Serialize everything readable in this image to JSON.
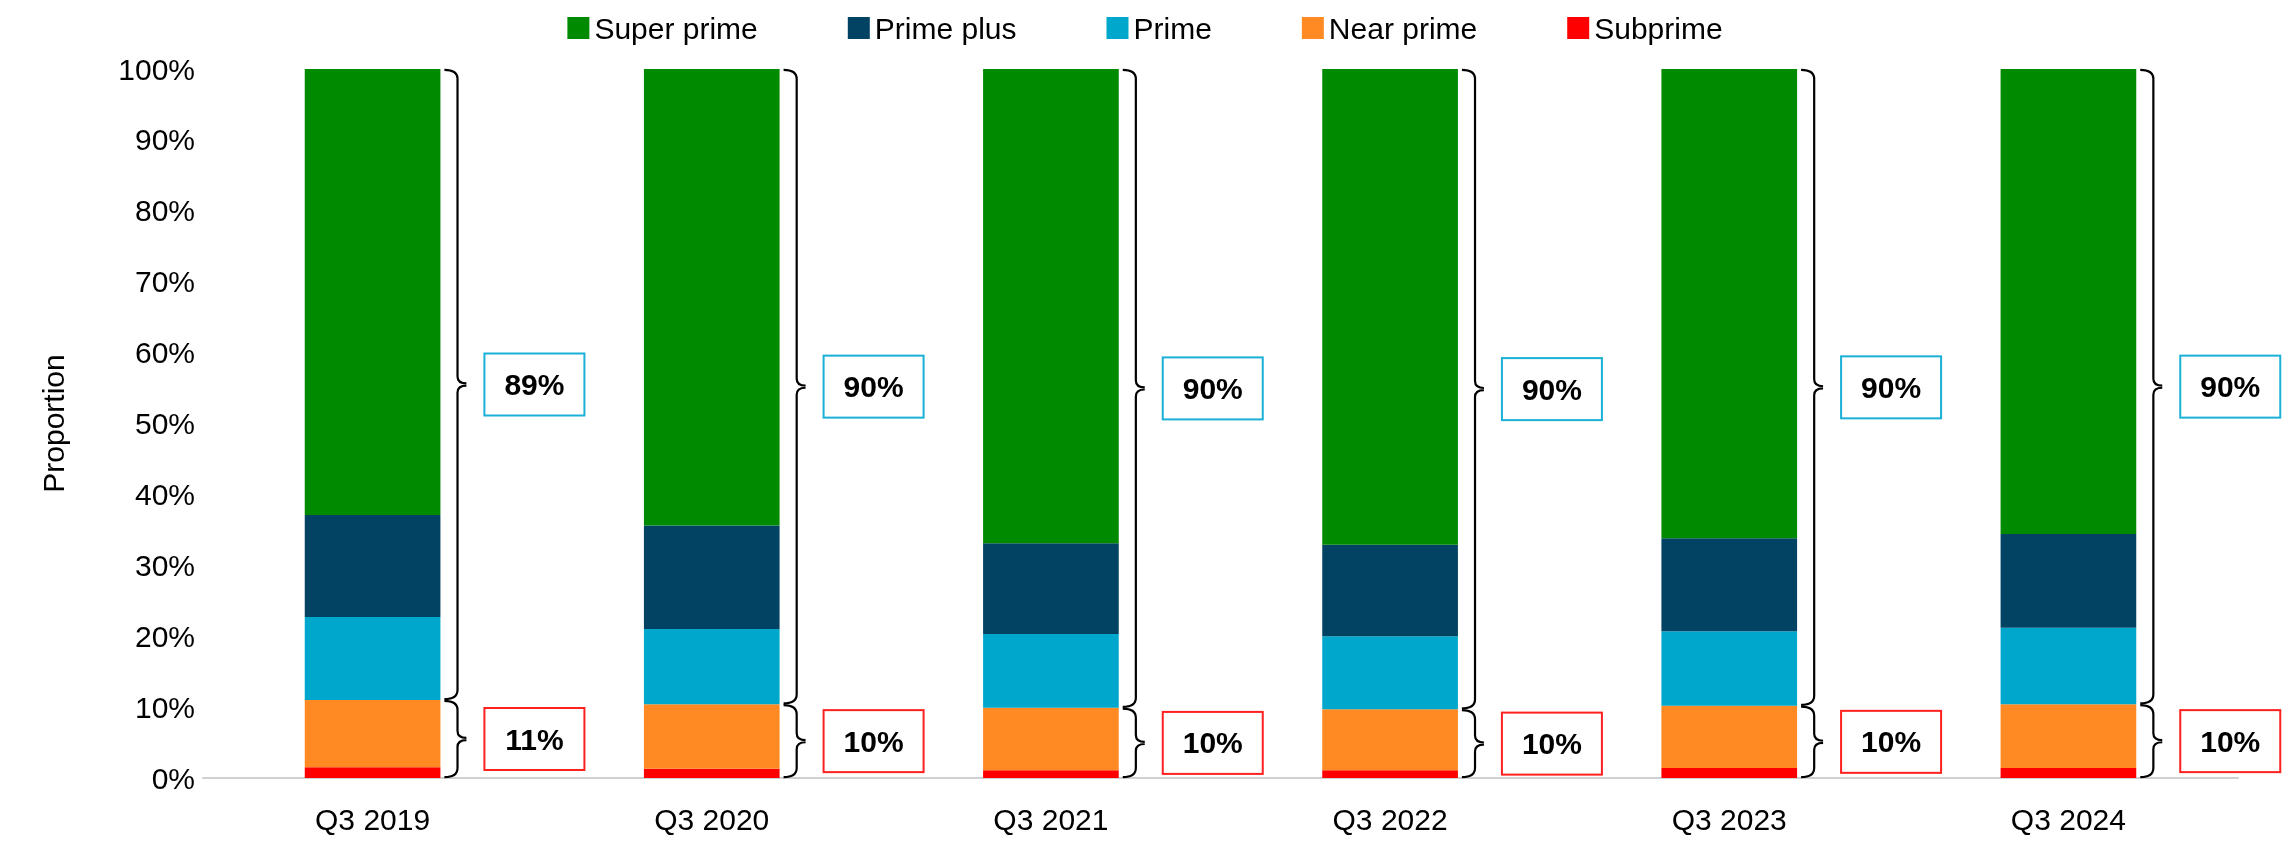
{
  "chart_data": {
    "type": "bar",
    "stacked": true,
    "ylabel": "Proportion",
    "categories": [
      "Q3 2019",
      "Q3 2020",
      "Q3 2021",
      "Q3 2022",
      "Q3 2023",
      "Q3 2024"
    ],
    "series": [
      {
        "name": "Subprime",
        "color": "#ff0000",
        "values": [
          1.5,
          1.3,
          1.1,
          1.1,
          1.4,
          1.4
        ]
      },
      {
        "name": "Near prime",
        "color": "#ff8a23",
        "values": [
          9.5,
          9.1,
          8.8,
          8.6,
          8.8,
          9.0
        ]
      },
      {
        "name": "Prime",
        "color": "#00a7cc",
        "values": [
          11.7,
          10.6,
          10.4,
          10.3,
          10.5,
          10.8
        ]
      },
      {
        "name": "Prime plus",
        "color": "#024363",
        "values": [
          14.4,
          14.6,
          12.8,
          12.9,
          13.1,
          13.2
        ]
      },
      {
        "name": "Super prime",
        "color": "#008a00",
        "values": [
          62.9,
          64.4,
          66.9,
          67.1,
          66.2,
          65.6
        ]
      }
    ],
    "ylim": [
      0,
      100
    ],
    "yticks": [
      {
        "value": 0,
        "label": "0%"
      },
      {
        "value": 10,
        "label": "10%"
      },
      {
        "value": 20,
        "label": "20%"
      },
      {
        "value": 30,
        "label": "30%"
      },
      {
        "value": 40,
        "label": "40%"
      },
      {
        "value": 50,
        "label": "50%"
      },
      {
        "value": 60,
        "label": "60%"
      },
      {
        "value": 70,
        "label": "70%"
      },
      {
        "value": 80,
        "label": "80%"
      },
      {
        "value": 90,
        "label": "90%"
      },
      {
        "value": 100,
        "label": "100%"
      }
    ],
    "grid": false,
    "legend": "top",
    "annotations": [
      "89%",
      "11%",
      "90%",
      "10%",
      "90%",
      "10%",
      "90%",
      "10%",
      "90%",
      "10%",
      "90%",
      "10%"
    ]
  }
}
